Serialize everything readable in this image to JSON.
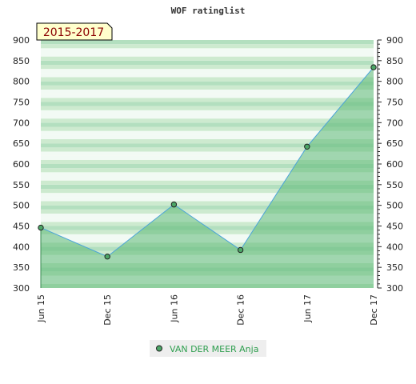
{
  "colors": {
    "band_light": "#f2faf4",
    "band_mid": "#cdeacf",
    "band_dark": "#b3dfbf",
    "area_fill": "#5cb876",
    "line": "#4aa3d9",
    "marker": "#4ca667",
    "tag_bg": "#ffffcc",
    "legend_bg": "#eeeeee",
    "legend_text": "#2e9e4e"
  },
  "chart_data": {
    "type": "area",
    "title": "WOF ratinglist",
    "tag": "2015-2017",
    "categories": [
      "Jun 15",
      "Dec 15",
      "Jun 16",
      "Dec 16",
      "Jun 17",
      "Dec 17"
    ],
    "series": [
      {
        "name": "VAN DER MEER Anja",
        "values": [
          446,
          376,
          502,
          392,
          642,
          834
        ]
      }
    ],
    "ylim": [
      300,
      900
    ],
    "yticks": [
      300,
      350,
      400,
      450,
      500,
      550,
      600,
      650,
      700,
      750,
      800,
      850,
      900
    ],
    "ytick_labels": [
      "300",
      "350",
      "400",
      "450",
      "500",
      "550",
      "600",
      "650",
      "700",
      "750",
      "800",
      "850",
      "900"
    ],
    "right_axis": true,
    "legend_position": "bottom-center",
    "grid": "horizontal bands"
  }
}
